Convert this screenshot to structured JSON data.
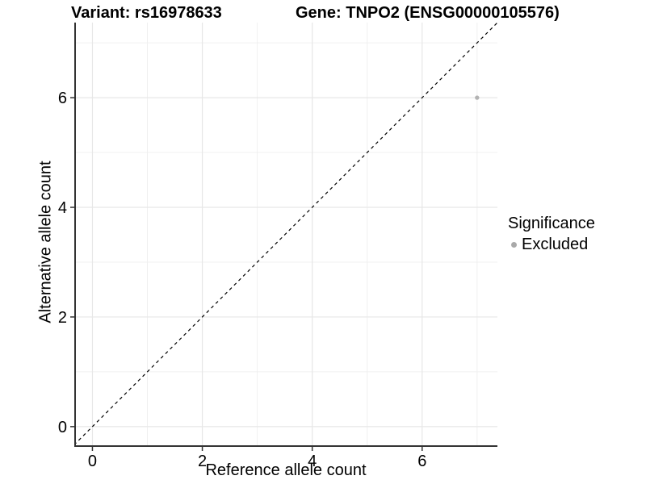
{
  "titles": {
    "variant": "Variant: rs16978633",
    "gene": "Gene: TNPO2 (ENSG00000105576)"
  },
  "legend": {
    "title": "Significance",
    "items": [
      {
        "label": "Excluded",
        "color": "#a9a9a9"
      }
    ]
  },
  "chart_data": {
    "type": "scatter",
    "title": "",
    "xlabel": "Reference allele count",
    "ylabel": "Alternative allele count",
    "xlim": [
      -0.33,
      7.37
    ],
    "ylim": [
      -0.37,
      7.37
    ],
    "x_major_ticks": [
      0,
      2,
      4,
      6
    ],
    "x_minor_ticks": [
      1,
      3,
      5,
      7
    ],
    "y_major_ticks": [
      0,
      2,
      4,
      6
    ],
    "y_minor_ticks": [
      1,
      3,
      5,
      7
    ],
    "grid": true,
    "legend_position": "right",
    "points": [
      {
        "x": 7,
        "y": 6,
        "series": "Excluded",
        "color": "#b3b3b3"
      }
    ],
    "reference_line": {
      "kind": "identity y=x",
      "style": "dashed",
      "color": "#000000"
    },
    "colors": {
      "background": "#ffffff",
      "grid_major": "#e7e7e7",
      "grid_minor": "#f0f0f0",
      "axis_line": "#333333",
      "tick_mark": "#333333",
      "point": "#b3b3b3"
    }
  }
}
